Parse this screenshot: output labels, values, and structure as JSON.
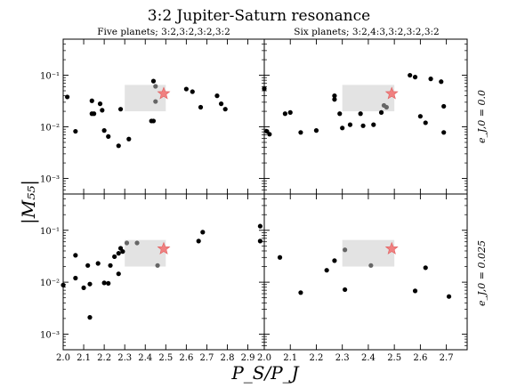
{
  "figure": {
    "title": "3:2 Jupiter-Saturn resonance",
    "ylabel": "|M₅₅|",
    "xlabel": "P_S/P_J"
  },
  "columns": [
    {
      "title": "Five planets; 3:2,3:2,3:2,3:2"
    },
    {
      "title": "Six planets; 3:2,4:3,3:2,3:2,3:2"
    }
  ],
  "rows": [
    {
      "label": "e_J,0 = 0.0"
    },
    {
      "label": "e_J,0 = 0.025"
    }
  ],
  "colors": {
    "points": "#000000",
    "box": "#e3e3e3",
    "star": "#f08080",
    "inbox_point": "#666666"
  },
  "chart_data": [
    {
      "type": "scatter",
      "panel": "top-left",
      "title": "Five planets; 3:2,3:2,3:2,3:2",
      "xlabel": "",
      "ylabel": "|M55|",
      "xlim": [
        2.0,
        2.98
      ],
      "ylim": [
        0.0005,
        0.5
      ],
      "yscale": "log",
      "x_ticks": [],
      "y_ticks": [
        "10⁻³",
        "10⁻²",
        "10⁻¹"
      ],
      "region": {
        "x": [
          2.3,
          2.5
        ],
        "y": [
          0.02,
          0.065
        ]
      },
      "marker": {
        "x": 2.49,
        "y": 0.044
      },
      "points": [
        [
          2.02,
          0.038
        ],
        [
          2.06,
          0.0082
        ],
        [
          2.14,
          0.032
        ],
        [
          2.14,
          0.018
        ],
        [
          2.15,
          0.018
        ],
        [
          2.18,
          0.028
        ],
        [
          2.19,
          0.021
        ],
        [
          2.2,
          0.0085
        ],
        [
          2.22,
          0.0065
        ],
        [
          2.27,
          0.0043
        ],
        [
          2.28,
          0.022
        ],
        [
          2.32,
          0.0058
        ],
        [
          2.43,
          0.013
        ],
        [
          2.44,
          0.013
        ],
        [
          2.44,
          0.077
        ],
        [
          2.45,
          0.061
        ],
        [
          2.45,
          0.031
        ],
        [
          2.6,
          0.054
        ],
        [
          2.63,
          0.048
        ],
        [
          2.67,
          0.024
        ],
        [
          2.75,
          0.04
        ],
        [
          2.77,
          0.028
        ],
        [
          2.79,
          0.022
        ]
      ]
    },
    {
      "type": "scatter",
      "panel": "top-right",
      "title": "Six planets; 3:2,4:3,3:2,3:2,3:2",
      "xlabel": "",
      "ylabel": "",
      "xlim": [
        2.0,
        2.78
      ],
      "ylim": [
        0.0005,
        0.5
      ],
      "yscale": "log",
      "x_ticks": [],
      "y_ticks": [],
      "region": {
        "x": [
          2.3,
          2.5
        ],
        "y": [
          0.02,
          0.065
        ]
      },
      "marker": {
        "x": 2.49,
        "y": 0.044
      },
      "points": [
        [
          2.0,
          0.055
        ],
        [
          2.01,
          0.0082
        ],
        [
          2.02,
          0.0072
        ],
        [
          2.08,
          0.018
        ],
        [
          2.1,
          0.019
        ],
        [
          2.14,
          0.0078
        ],
        [
          2.2,
          0.0085
        ],
        [
          2.27,
          0.034
        ],
        [
          2.27,
          0.04
        ],
        [
          2.29,
          0.018
        ],
        [
          2.3,
          0.0095
        ],
        [
          2.33,
          0.011
        ],
        [
          2.37,
          0.018
        ],
        [
          2.38,
          0.0105
        ],
        [
          2.42,
          0.011
        ],
        [
          2.45,
          0.019
        ],
        [
          2.46,
          0.026
        ],
        [
          2.47,
          0.024
        ],
        [
          2.56,
          0.1
        ],
        [
          2.58,
          0.092
        ],
        [
          2.6,
          0.016
        ],
        [
          2.62,
          0.012
        ],
        [
          2.64,
          0.085
        ],
        [
          2.68,
          0.075
        ],
        [
          2.69,
          0.025
        ],
        [
          2.69,
          0.0078
        ]
      ]
    },
    {
      "type": "scatter",
      "panel": "bottom-left",
      "title": "",
      "xlabel": "P_S/P_J",
      "ylabel": "|M55|",
      "xlim": [
        2.0,
        2.98
      ],
      "ylim": [
        0.0005,
        0.5
      ],
      "yscale": "log",
      "x_ticks": [
        "2.0",
        "2.1",
        "2.2",
        "2.3",
        "2.4",
        "2.5",
        "2.6",
        "2.7",
        "2.8",
        "2.9"
      ],
      "y_ticks": [
        "10⁻³",
        "10⁻²",
        "10⁻¹"
      ],
      "region": {
        "x": [
          2.3,
          2.5
        ],
        "y": [
          0.02,
          0.065
        ]
      },
      "marker": {
        "x": 2.49,
        "y": 0.044
      },
      "points": [
        [
          2.0,
          0.0088
        ],
        [
          2.06,
          0.033
        ],
        [
          2.06,
          0.012
        ],
        [
          2.1,
          0.0078
        ],
        [
          2.12,
          0.021
        ],
        [
          2.13,
          0.0021
        ],
        [
          2.13,
          0.0092
        ],
        [
          2.17,
          0.023
        ],
        [
          2.2,
          0.0097
        ],
        [
          2.22,
          0.0095
        ],
        [
          2.23,
          0.021
        ],
        [
          2.25,
          0.031
        ],
        [
          2.27,
          0.036
        ],
        [
          2.27,
          0.0145
        ],
        [
          2.28,
          0.045
        ],
        [
          2.29,
          0.039
        ],
        [
          2.31,
          0.057
        ],
        [
          2.36,
          0.057
        ],
        [
          2.46,
          0.021
        ],
        [
          2.66,
          0.062
        ],
        [
          2.68,
          0.092
        ],
        [
          2.96,
          0.12
        ],
        [
          2.96,
          0.062
        ]
      ]
    },
    {
      "type": "scatter",
      "panel": "bottom-right",
      "title": "",
      "xlabel": "P_S/P_J",
      "ylabel": "",
      "xlim": [
        2.0,
        2.78
      ],
      "ylim": [
        0.0005,
        0.5
      ],
      "yscale": "log",
      "x_ticks": [
        "2.0",
        "2.1",
        "2.2",
        "2.3",
        "2.4",
        "2.5",
        "2.6",
        "2.7"
      ],
      "y_ticks": [],
      "region": {
        "x": [
          2.3,
          2.5
        ],
        "y": [
          0.02,
          0.065
        ]
      },
      "marker": {
        "x": 2.49,
        "y": 0.044
      },
      "points": [
        [
          2.06,
          0.03
        ],
        [
          2.14,
          0.0063
        ],
        [
          2.24,
          0.017
        ],
        [
          2.27,
          0.026
        ],
        [
          2.31,
          0.042
        ],
        [
          2.31,
          0.0072
        ],
        [
          2.41,
          0.021
        ],
        [
          2.58,
          0.0068
        ],
        [
          2.62,
          0.019
        ],
        [
          2.71,
          0.0053
        ]
      ]
    }
  ]
}
